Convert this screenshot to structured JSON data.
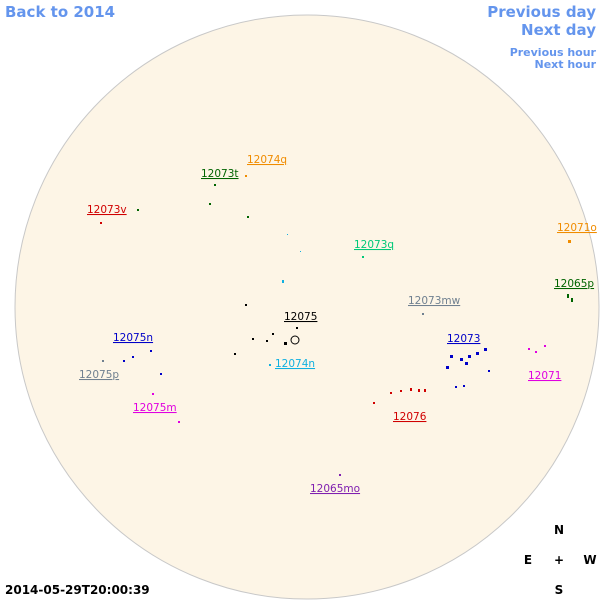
{
  "navigation": {
    "back": "Back to 2014",
    "previous_day": "Previous day",
    "next_day": "Next day",
    "previous_hour": "Previous hour",
    "next_hour": "Next hour"
  },
  "regions": [
    {
      "label": "12074q",
      "color": "#f08c00"
    },
    {
      "label": "12073t",
      "color": "#006400"
    },
    {
      "label": "12073v",
      "color": "#d00000"
    },
    {
      "label": "12071o",
      "color": "#f08c00"
    },
    {
      "label": "12073q",
      "color": "#00c878"
    },
    {
      "label": "12065p",
      "color": "#006400"
    },
    {
      "label": "12073mw",
      "color": "#708090"
    },
    {
      "label": "12075",
      "color": "#000000"
    },
    {
      "label": "12075n",
      "color": "#0000c8"
    },
    {
      "label": "12073",
      "color": "#0000c8"
    },
    {
      "label": "12074n",
      "color": "#10b0e0"
    },
    {
      "label": "12075p",
      "color": "#708090"
    },
    {
      "label": "12071",
      "color": "#e000e0"
    },
    {
      "label": "12075m",
      "color": "#e000e0"
    },
    {
      "label": "12076",
      "color": "#d00000"
    },
    {
      "label": "12065mo",
      "color": "#8020b0"
    }
  ],
  "compass": {
    "north": "N",
    "east": "E",
    "center": "+",
    "west": "W",
    "south": "S"
  },
  "timestamp": "2014-05-29T20:00:39"
}
